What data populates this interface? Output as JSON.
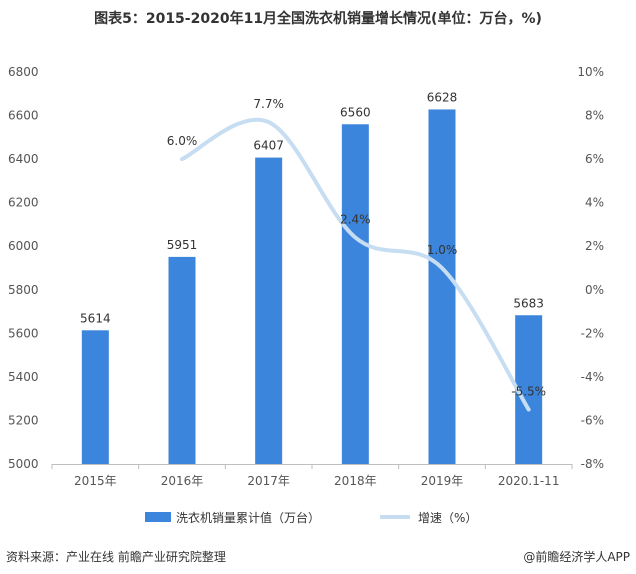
{
  "title": "图表5：2015-2020年11月全国洗衣机销量增长情况(单位：万台，%)",
  "footer": {
    "source": "资料来源：产业在线 前瞻产业研究院整理",
    "brand": "@前瞻经济学人APP"
  },
  "colors": {
    "bar": "#3c85dc",
    "line": "#c6ddf2"
  },
  "chart_data": {
    "type": "bar",
    "categories": [
      "2015年",
      "2016年",
      "2017年",
      "2018年",
      "2019年",
      "2020.1-11"
    ],
    "series": [
      {
        "name": "洗衣机销量累计值（万台）",
        "type": "bar",
        "axis": "left",
        "values": [
          5614,
          5951,
          6407,
          6560,
          6628,
          5683
        ],
        "labels": [
          "5614",
          "5951",
          "6407",
          "6560",
          "6628",
          "5683"
        ]
      },
      {
        "name": "增速（%）",
        "type": "line",
        "axis": "right",
        "values": [
          null,
          6.0,
          7.7,
          2.4,
          1.0,
          -5.5
        ],
        "labels": [
          "",
          "6.0%",
          "7.7%",
          "2.4%",
          "1.0%",
          "-5.5%"
        ]
      }
    ],
    "y_left": {
      "min": 5000,
      "max": 6800,
      "step": 200,
      "ticks": [
        "5000",
        "5200",
        "5400",
        "5600",
        "5800",
        "6000",
        "6200",
        "6400",
        "6600",
        "6800"
      ]
    },
    "y_right": {
      "min": -8,
      "max": 10,
      "step": 2,
      "ticks": [
        "-8%",
        "-6%",
        "-4%",
        "-2%",
        "0%",
        "2%",
        "4%",
        "6%",
        "8%",
        "10%"
      ]
    },
    "grid": false,
    "legend_position": "bottom"
  }
}
